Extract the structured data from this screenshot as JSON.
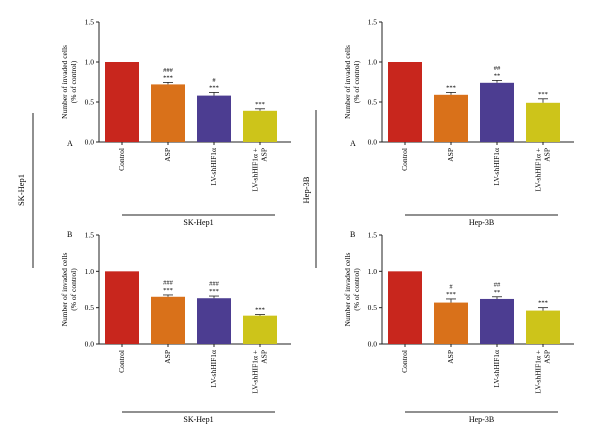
{
  "colors": {
    "Control": "#c8261d",
    "ASP": "#d9711a",
    "LV-shHIF1α": "#4c3d91",
    "LV-shHIF1α + ASP": "#cdc41a"
  },
  "side_labels": [
    "SK-Hep1",
    "Hep-3B"
  ],
  "chart_data": [
    {
      "type": "bar",
      "panel_label": "A",
      "group_label": "SK-Hep1",
      "ylabel_lines": [
        "Number of invaded cells",
        "(% of control)"
      ],
      "ylim": [
        0,
        1.5
      ],
      "yticks": [
        "0.0",
        "0.5",
        "1.0",
        "1.5"
      ],
      "categories": [
        "Control",
        "ASP",
        "LV-shHIF1α",
        "LV-shHIF1α + ASP"
      ],
      "values": [
        1.0,
        0.72,
        0.58,
        0.39
      ],
      "errors": [
        0.0,
        0.025,
        0.04,
        0.025
      ],
      "annotations": [
        [],
        [
          "###",
          "***"
        ],
        [
          "#",
          "***"
        ],
        [
          "***"
        ]
      ]
    },
    {
      "type": "bar",
      "panel_label": "A",
      "group_label": "Hep-3B",
      "ylabel_lines": [
        "Number of invaded cells",
        "(% of control)"
      ],
      "ylim": [
        0,
        1.5
      ],
      "yticks": [
        "0.0",
        "0.5",
        "1.0",
        "1.5"
      ],
      "categories": [
        "Control",
        "ASP",
        "LV-shHIF1α",
        "LV-shHIF1α + ASP"
      ],
      "values": [
        1.0,
        0.59,
        0.74,
        0.49
      ],
      "errors": [
        0.0,
        0.03,
        0.03,
        0.05
      ],
      "annotations": [
        [],
        [
          "***"
        ],
        [
          "##",
          "**"
        ],
        [
          "***"
        ]
      ]
    },
    {
      "type": "bar",
      "panel_label": "B",
      "group_label": "SK-Hep1",
      "ylabel_lines": [
        "Number of invaded cells",
        "(% of control)"
      ],
      "ylim": [
        0,
        1.5
      ],
      "yticks": [
        "0.0",
        "0.5",
        "1.0",
        "1.5"
      ],
      "categories": [
        "Control",
        "ASP",
        "LV-shHIF1α",
        "LV-shHIF1α + ASP"
      ],
      "values": [
        1.0,
        0.65,
        0.63,
        0.39
      ],
      "errors": [
        0.0,
        0.025,
        0.03,
        0.015
      ],
      "annotations": [
        [],
        [
          "###",
          "***"
        ],
        [
          "###",
          "***"
        ],
        [
          "***"
        ]
      ]
    },
    {
      "type": "bar",
      "panel_label": "B",
      "group_label": "Hep-3B",
      "ylabel_lines": [
        "Number of invaded cells",
        "(% of control)"
      ],
      "ylim": [
        0,
        1.5
      ],
      "yticks": [
        "0.0",
        "0.5",
        "1.0",
        "1.5"
      ],
      "categories": [
        "Control",
        "ASP",
        "LV-shHIF1α",
        "LV-shHIF1α + ASP"
      ],
      "values": [
        1.0,
        0.57,
        0.62,
        0.46
      ],
      "errors": [
        0.0,
        0.05,
        0.03,
        0.04
      ],
      "annotations": [
        [],
        [
          "#",
          "***"
        ],
        [
          "##",
          "**"
        ],
        [
          "***"
        ]
      ]
    }
  ]
}
